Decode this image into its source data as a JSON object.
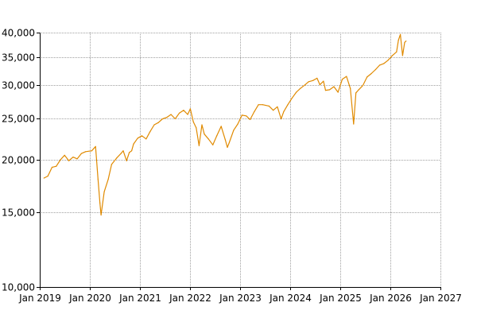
{
  "chart_data": {
    "type": "line",
    "title": "",
    "xlabel": "",
    "ylabel": "",
    "y_scale": "log",
    "ylim": [
      10000,
      40000
    ],
    "xlim": [
      "2019-01-01",
      "2027-01-01"
    ],
    "grid": true,
    "colors": {
      "line": "#e08a00",
      "grid": "#a0a0a0",
      "axis": "#000000"
    },
    "y_ticks": [
      {
        "value": 10000,
        "label": "10,000"
      },
      {
        "value": 15000,
        "label": "15,000"
      },
      {
        "value": 20000,
        "label": "20,000"
      },
      {
        "value": 25000,
        "label": "25,000"
      },
      {
        "value": 30000,
        "label": "30,000"
      },
      {
        "value": 35000,
        "label": "35,000"
      },
      {
        "value": 40000,
        "label": "40,000"
      }
    ],
    "x_ticks": [
      {
        "value": "2019-01-01",
        "label": "Jan 2019"
      },
      {
        "value": "2020-01-01",
        "label": "Jan 2020"
      },
      {
        "value": "2021-01-01",
        "label": "Jan 2021"
      },
      {
        "value": "2022-01-01",
        "label": "Jan 2022"
      },
      {
        "value": "2023-01-01",
        "label": "Jan 2023"
      },
      {
        "value": "2024-01-01",
        "label": "Jan 2024"
      },
      {
        "value": "2025-01-01",
        "label": "Jan 2025"
      },
      {
        "value": "2026-01-01",
        "label": "Jan 2026"
      },
      {
        "value": "2027-01-01",
        "label": "Jan 2027"
      }
    ],
    "series": [
      {
        "x": [
          "2019-02-01",
          "2019-03-01",
          "2019-04-01",
          "2019-05-01",
          "2019-06-01",
          "2019-07-01",
          "2019-08-01",
          "2019-09-01",
          "2019-10-01",
          "2019-11-01",
          "2019-12-01",
          "2020-01-15",
          "2020-02-12",
          "2020-03-01",
          "2020-03-15",
          "2020-03-23",
          "2020-04-15",
          "2020-05-15",
          "2020-06-08",
          "2020-07-15",
          "2020-08-15",
          "2020-09-01",
          "2020-09-25",
          "2020-10-15",
          "2020-11-01",
          "2020-11-15",
          "2020-12-15",
          "2021-01-15",
          "2021-02-15",
          "2021-03-15",
          "2021-04-15",
          "2021-05-15",
          "2021-06-15",
          "2021-07-15",
          "2021-08-15",
          "2021-09-15",
          "2021-10-15",
          "2021-11-15",
          "2021-12-15",
          "2022-01-03",
          "2022-01-25",
          "2022-02-15",
          "2022-03-08",
          "2022-03-29",
          "2022-04-15",
          "2022-05-15",
          "2022-06-16",
          "2022-07-15",
          "2022-08-16",
          "2022-09-15",
          "2022-09-30",
          "2022-10-15",
          "2022-11-15",
          "2022-12-15",
          "2023-01-15",
          "2023-02-15",
          "2023-03-15",
          "2023-04-15",
          "2023-05-15",
          "2023-06-15",
          "2023-07-31",
          "2023-08-31",
          "2023-09-30",
          "2023-10-27",
          "2023-11-15",
          "2023-12-15",
          "2024-01-15",
          "2024-02-15",
          "2024-03-15",
          "2024-04-19",
          "2024-05-15",
          "2024-06-15",
          "2024-07-15",
          "2024-08-05",
          "2024-08-31",
          "2024-09-15",
          "2024-10-15",
          "2024-11-15",
          "2024-12-15",
          "2025-01-15",
          "2025-02-15",
          "2025-03-15",
          "2025-04-08",
          "2025-04-25",
          "2025-05-15",
          "2025-06-15",
          "2025-07-15",
          "2025-08-15",
          "2025-09-15",
          "2025-10-15",
          "2025-11-15",
          "2025-12-15",
          "2026-01-15",
          "2026-02-15",
          "2026-03-01",
          "2026-03-15",
          "2026-03-31",
          "2026-04-15",
          "2026-04-25"
        ],
        "y": [
          18100,
          18300,
          19200,
          19300,
          20000,
          20500,
          19900,
          20300,
          20100,
          20700,
          20900,
          21000,
          21500,
          18000,
          15800,
          14800,
          16800,
          18000,
          19500,
          20200,
          20700,
          21000,
          19900,
          20800,
          21000,
          21800,
          22500,
          22800,
          22400,
          23300,
          24200,
          24500,
          25000,
          25200,
          25600,
          25000,
          25800,
          26200,
          25600,
          26400,
          24600,
          23800,
          21600,
          24200,
          23000,
          22400,
          21700,
          22800,
          24000,
          22300,
          21400,
          22000,
          23500,
          24300,
          25500,
          25400,
          24900,
          26000,
          27000,
          27000,
          26800,
          26200,
          26700,
          25000,
          26000,
          27000,
          28000,
          28900,
          29500,
          30100,
          30600,
          30800,
          31200,
          30100,
          30700,
          29200,
          29300,
          29800,
          28900,
          31000,
          31500,
          29500,
          24300,
          28800,
          29300,
          30000,
          31400,
          32000,
          32700,
          33500,
          33800,
          34400,
          35300,
          36000,
          38400,
          39600,
          35300,
          37900,
          38200
        ]
      }
    ]
  }
}
